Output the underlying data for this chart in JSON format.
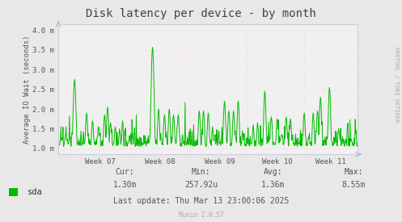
{
  "title": "Disk latency per device - by month",
  "ylabel": "Average IO Wait (seconds)",
  "bg_color": "#e8e8e8",
  "plot_bg_color": "#f0f0f0",
  "line_color": "#00bb00",
  "grid_h_color": "#ffcccc",
  "grid_v_color": "#ffcccc",
  "spine_color": "#aaaacc",
  "text_color": "#555555",
  "title_color": "#444444",
  "rrdtool_color": "#aaaaaa",
  "munin_color": "#aaaaaa",
  "x_labels": [
    "Week 07",
    "Week 08",
    "Week 09",
    "Week 10",
    "Week 11"
  ],
  "x_tick_positions": [
    0.14,
    0.34,
    0.54,
    0.73,
    0.91
  ],
  "x_vline_positions": [
    0.04,
    0.24,
    0.44,
    0.63,
    0.82,
    1.0
  ],
  "ylim_min": 0.00085,
  "ylim_max": 0.00415,
  "yticks": [
    0.001,
    0.0015,
    0.002,
    0.0025,
    0.003,
    0.0035,
    0.004
  ],
  "ytick_labels": [
    "1.0 m",
    "1.5 m",
    "2.0 m",
    "2.5 m",
    "3.0 m",
    "3.5 m",
    "4.0 m"
  ],
  "legend_label": "sda",
  "cur_label": "Cur:",
  "cur_val": "1.30m",
  "min_label": "Min:",
  "min_val": "257.92u",
  "avg_label": "Avg:",
  "avg_val": "1.36m",
  "max_label": "Max:",
  "max_val": "8.55m",
  "last_update": "Last update: Thu Mar 13 23:00:06 2025",
  "munin_version": "Munin 2.0.57",
  "rrdtool_label": "RRDTOOL / TOBI OETIKER",
  "title_fontsize": 10,
  "axis_fontsize": 6.5,
  "legend_fontsize": 7.5,
  "stats_fontsize": 7,
  "rrdtool_fontsize": 5
}
